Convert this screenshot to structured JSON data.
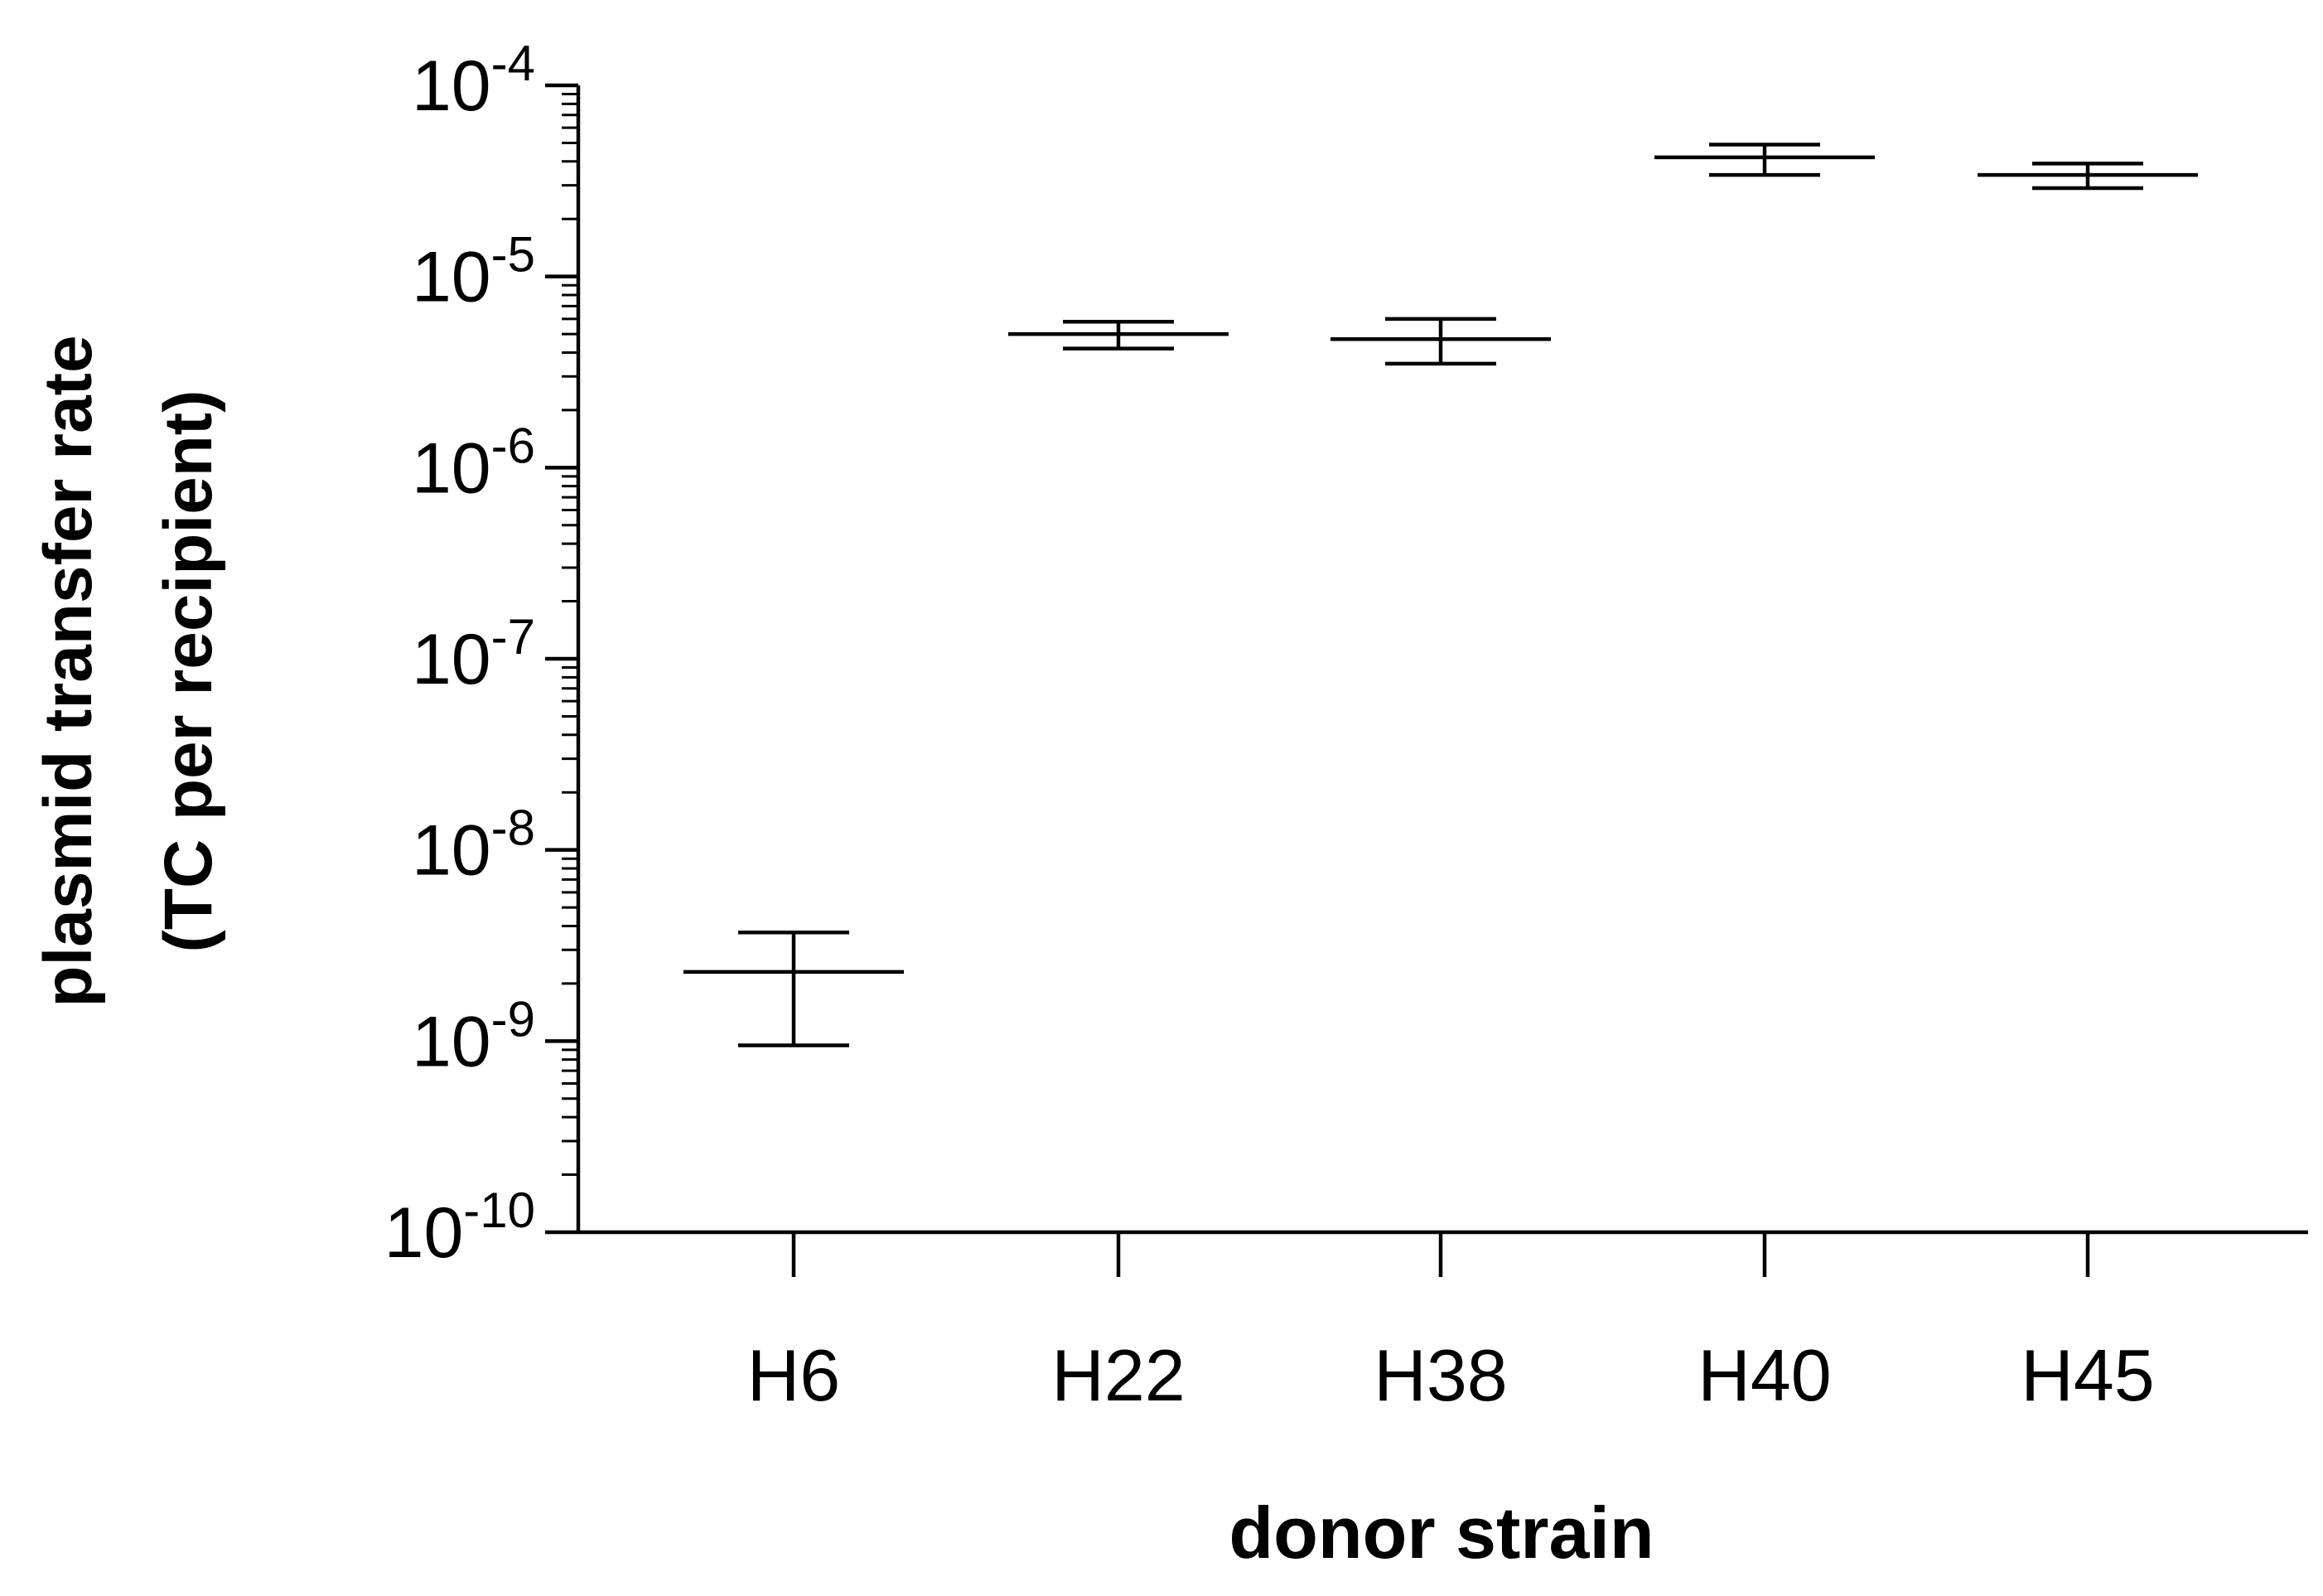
{
  "chart_data": {
    "type": "scatter",
    "title": "",
    "xlabel": "donor strain",
    "ylabel_line1": "plasmid transfer rate",
    "ylabel_line2": "(TC per recipient)",
    "y_scale": "log",
    "ylim": [
      1e-10,
      0.0001
    ],
    "y_ticks": [
      {
        "base": "10",
        "exp": "-4"
      },
      {
        "base": "10",
        "exp": "-5"
      },
      {
        "base": "10",
        "exp": "-6"
      },
      {
        "base": "10",
        "exp": "-7"
      },
      {
        "base": "10",
        "exp": "-8"
      },
      {
        "base": "10",
        "exp": "-9"
      },
      {
        "base": "10",
        "exp": "-10"
      }
    ],
    "y_tick_values": [
      0.0001,
      1e-05,
      1e-06,
      1e-07,
      1e-08,
      1e-09,
      1e-10
    ],
    "categories": [
      "H6",
      "H22",
      "H38",
      "H40",
      "H45"
    ],
    "series": [
      {
        "mean": [
          2.3e-09,
          5e-06,
          4.7e-06,
          4.2e-05,
          3.4e-05
        ],
        "err_high": [
          3.7e-09,
          5.8e-06,
          6e-06,
          4.9e-05,
          3.9e-05
        ],
        "err_low": [
          9.5e-10,
          4.2e-06,
          3.5e-06,
          3.4e-05,
          2.9e-05
        ]
      }
    ],
    "grid": false,
    "legend": "none"
  }
}
